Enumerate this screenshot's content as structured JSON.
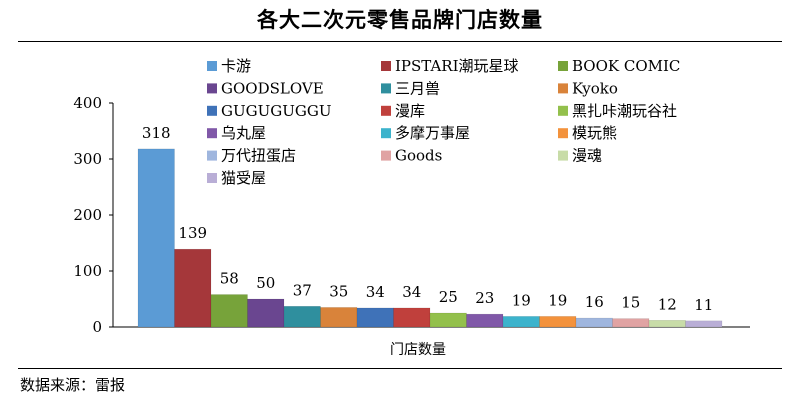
{
  "header": {
    "title": "各大二次元零售品牌门店数量"
  },
  "footer": {
    "source": "数据来源：雷报"
  },
  "chart_data": {
    "type": "bar",
    "title": "各大二次元零售品牌门店数量",
    "xlabel": "门店数量",
    "ylabel": "",
    "ylim": [
      0,
      400
    ],
    "yticks": [
      0,
      100,
      200,
      300,
      400
    ],
    "grid": false,
    "legend_position": "top",
    "show_data_labels": true,
    "series": [
      {
        "name": "卡游",
        "value": 318,
        "color": "#5b9bd5"
      },
      {
        "name": "IPSTARI潮玩星球",
        "value": 139,
        "color": "#a5373a"
      },
      {
        "name": "BOOK COMIC",
        "value": 58,
        "color": "#77a33a"
      },
      {
        "name": "GOODSLOVE",
        "value": 50,
        "color": "#6a4690"
      },
      {
        "name": "三月兽",
        "value": 37,
        "color": "#2f8f9e"
      },
      {
        "name": "Kyoko",
        "value": 35,
        "color": "#d9833a"
      },
      {
        "name": "GUGUGUGGU",
        "value": 34,
        "color": "#3f72b8"
      },
      {
        "name": "漫库",
        "value": 34,
        "color": "#c0403c"
      },
      {
        "name": "黑扎咔潮玩谷社",
        "value": 25,
        "color": "#93c04c"
      },
      {
        "name": "乌丸屋",
        "value": 23,
        "color": "#8058a8"
      },
      {
        "name": "多摩万事屋",
        "value": 19,
        "color": "#3cb3cc"
      },
      {
        "name": "模玩熊",
        "value": 19,
        "color": "#f3923c"
      },
      {
        "name": "万代扭蛋店",
        "value": 16,
        "color": "#9fb6de"
      },
      {
        "name": "Goods",
        "value": 15,
        "color": "#e0a3a3"
      },
      {
        "name": "漫魂",
        "value": 12,
        "color": "#c8dca8"
      },
      {
        "name": "猫受屋",
        "value": 11,
        "color": "#b9aed6"
      }
    ]
  }
}
